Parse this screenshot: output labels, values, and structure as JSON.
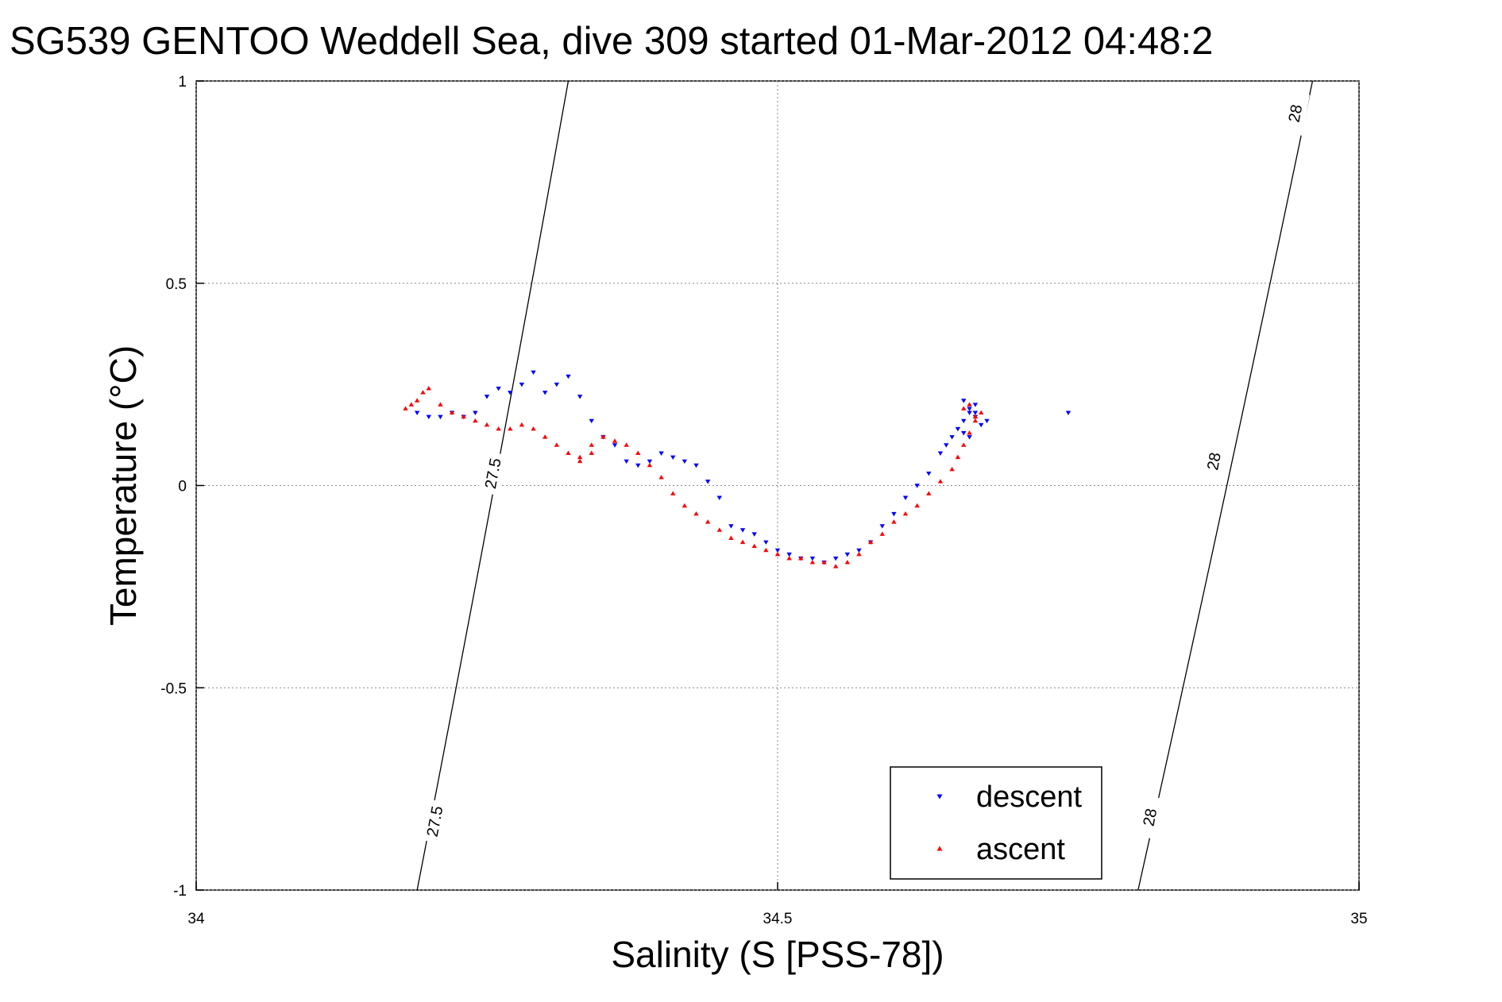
{
  "chart_data": {
    "type": "scatter",
    "title": "SG539 GENTOO Weddell Sea, dive 309 started 01-Mar-2012 04:48:2",
    "xlabel": "Salinity (S [PSS-78])",
    "ylabel": "Temperature (°C)",
    "xlim": [
      34,
      35
    ],
    "ylim": [
      -1,
      1
    ],
    "xticks": [
      34,
      34.5,
      35
    ],
    "xtick_labels": [
      "34",
      "34.5",
      "35"
    ],
    "yticks": [
      1,
      0.5,
      0,
      -0.5,
      -1
    ],
    "ytick_labels": [
      "1",
      "0.5",
      "0",
      "-0.5",
      "-1"
    ],
    "grid": true,
    "legend_position": "bottom-right",
    "series": [
      {
        "name": "descent",
        "color": "#0000ff",
        "marker": "triangle-down",
        "x": [
          34.19,
          34.2,
          34.21,
          34.22,
          34.23,
          34.24,
          34.25,
          34.26,
          34.27,
          34.28,
          34.29,
          34.3,
          34.31,
          34.32,
          34.33,
          34.34,
          34.35,
          34.36,
          34.37,
          34.38,
          34.39,
          34.4,
          34.41,
          34.42,
          34.43,
          34.44,
          34.45,
          34.46,
          34.47,
          34.48,
          34.49,
          34.5,
          34.51,
          34.52,
          34.53,
          34.54,
          34.55,
          34.56,
          34.57,
          34.58,
          34.59,
          34.6,
          34.61,
          34.62,
          34.63,
          34.64,
          34.645,
          34.65,
          34.655,
          34.66,
          34.665,
          34.67,
          34.66,
          34.665,
          34.67,
          34.675,
          34.68,
          34.66,
          34.665,
          34.67,
          34.75
        ],
        "y": [
          0.18,
          0.17,
          0.17,
          0.18,
          0.17,
          0.18,
          0.22,
          0.24,
          0.23,
          0.25,
          0.28,
          0.23,
          0.25,
          0.27,
          0.22,
          0.16,
          0.12,
          0.1,
          0.06,
          0.05,
          0.06,
          0.08,
          0.07,
          0.06,
          0.05,
          0.01,
          -0.03,
          -0.1,
          -0.11,
          -0.12,
          -0.14,
          -0.16,
          -0.17,
          -0.18,
          -0.18,
          -0.19,
          -0.18,
          -0.17,
          -0.16,
          -0.14,
          -0.1,
          -0.07,
          -0.03,
          0.0,
          0.03,
          0.08,
          0.1,
          0.12,
          0.14,
          0.16,
          0.18,
          0.2,
          0.21,
          0.19,
          0.17,
          0.15,
          0.16,
          0.13,
          0.12,
          0.18,
          0.18
        ]
      },
      {
        "name": "ascent",
        "color": "#ff0000",
        "marker": "triangle-up",
        "x": [
          34.18,
          34.185,
          34.19,
          34.195,
          34.2,
          34.21,
          34.22,
          34.23,
          34.24,
          34.25,
          34.26,
          34.27,
          34.28,
          34.29,
          34.3,
          34.31,
          34.32,
          34.33,
          34.34,
          34.35,
          34.36,
          34.37,
          34.38,
          34.39,
          34.4,
          34.41,
          34.42,
          34.43,
          34.44,
          34.45,
          34.46,
          34.47,
          34.48,
          34.49,
          34.5,
          34.51,
          34.52,
          34.53,
          34.54,
          34.55,
          34.56,
          34.57,
          34.58,
          34.59,
          34.6,
          34.61,
          34.62,
          34.63,
          34.64,
          34.65,
          34.655,
          34.66,
          34.665,
          34.67,
          34.675,
          34.66,
          34.665,
          34.67,
          34.33,
          34.34
        ],
        "y": [
          0.19,
          0.2,
          0.21,
          0.23,
          0.24,
          0.2,
          0.18,
          0.17,
          0.16,
          0.15,
          0.14,
          0.14,
          0.15,
          0.14,
          0.12,
          0.1,
          0.08,
          0.07,
          0.1,
          0.12,
          0.11,
          0.1,
          0.08,
          0.05,
          0.02,
          -0.02,
          -0.05,
          -0.07,
          -0.09,
          -0.11,
          -0.13,
          -0.14,
          -0.15,
          -0.16,
          -0.17,
          -0.18,
          -0.18,
          -0.19,
          -0.19,
          -0.2,
          -0.19,
          -0.17,
          -0.14,
          -0.12,
          -0.09,
          -0.07,
          -0.05,
          -0.02,
          0.01,
          0.04,
          0.07,
          0.1,
          0.13,
          0.16,
          0.18,
          0.19,
          0.2,
          0.17,
          0.06,
          0.08
        ]
      }
    ],
    "contours": [
      {
        "label": "27.5",
        "x_bottom": 34.19,
        "x_top": 34.32
      },
      {
        "label": "28",
        "x_bottom": 34.81,
        "x_top": 34.96
      }
    ],
    "contour_labels": [
      {
        "text": "27.5",
        "x": 34.255,
        "y": 0.03
      },
      {
        "text": "27.5",
        "x": 34.205,
        "y": -0.83
      },
      {
        "text": "28",
        "x": 34.875,
        "y": 0.06
      },
      {
        "text": "28",
        "x": 34.82,
        "y": -0.82
      },
      {
        "text": "28",
        "x": 34.945,
        "y": 0.92
      }
    ]
  }
}
